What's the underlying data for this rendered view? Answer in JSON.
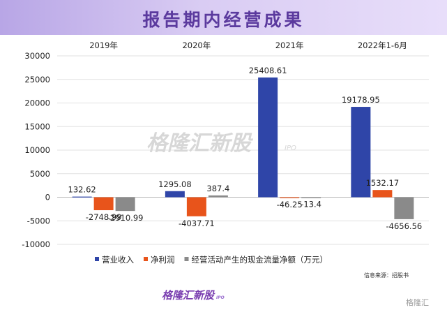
{
  "header": {
    "title": "报告期内经营成果"
  },
  "watermark": {
    "text": "格隆汇新股",
    "sub": "IPO"
  },
  "source_text": "信息来源：招股书",
  "footer": {
    "logo_text": "格隆汇新股",
    "logo_sub": "IPO",
    "corner_text": "格隆汇"
  },
  "colors": {
    "revenue": "#2f45a8",
    "net_profit": "#e8541b",
    "cash_flow": "#8a8a8a",
    "banner": "#b8a6e6",
    "title": "#5b3a9e"
  },
  "chart_data": {
    "type": "bar",
    "title": "",
    "xlabel": "",
    "ylabel": "",
    "categories": [
      "2019年",
      "2020年",
      "2021年",
      "2022年1-6月"
    ],
    "category_axis_position": "top",
    "ylim": [
      -10000,
      30000
    ],
    "yticks": [
      30000,
      25000,
      20000,
      15000,
      10000,
      5000,
      0,
      -5000,
      -10000
    ],
    "grid": true,
    "legend_position": "bottom",
    "series": [
      {
        "name": "营业收入",
        "values": [
          132.62,
          1295.08,
          25408.61,
          19178.95
        ],
        "labels": [
          "132.62",
          "1295.08",
          "25408.61",
          "19178.95"
        ]
      },
      {
        "name": "净利润",
        "values": [
          -2748.99,
          -4037.71,
          -46.25,
          1532.17
        ],
        "labels": [
          "-2748.99",
          "-4037.71",
          "-46.25",
          "1532.17"
        ]
      },
      {
        "name": "经营活动产生的现金流量净额（万元）",
        "values": [
          -2910.99,
          387.4,
          -13.4,
          -4656.56
        ],
        "labels": [
          "-2910.99",
          "387.4",
          "-13.4",
          "-4656.56"
        ]
      }
    ]
  }
}
